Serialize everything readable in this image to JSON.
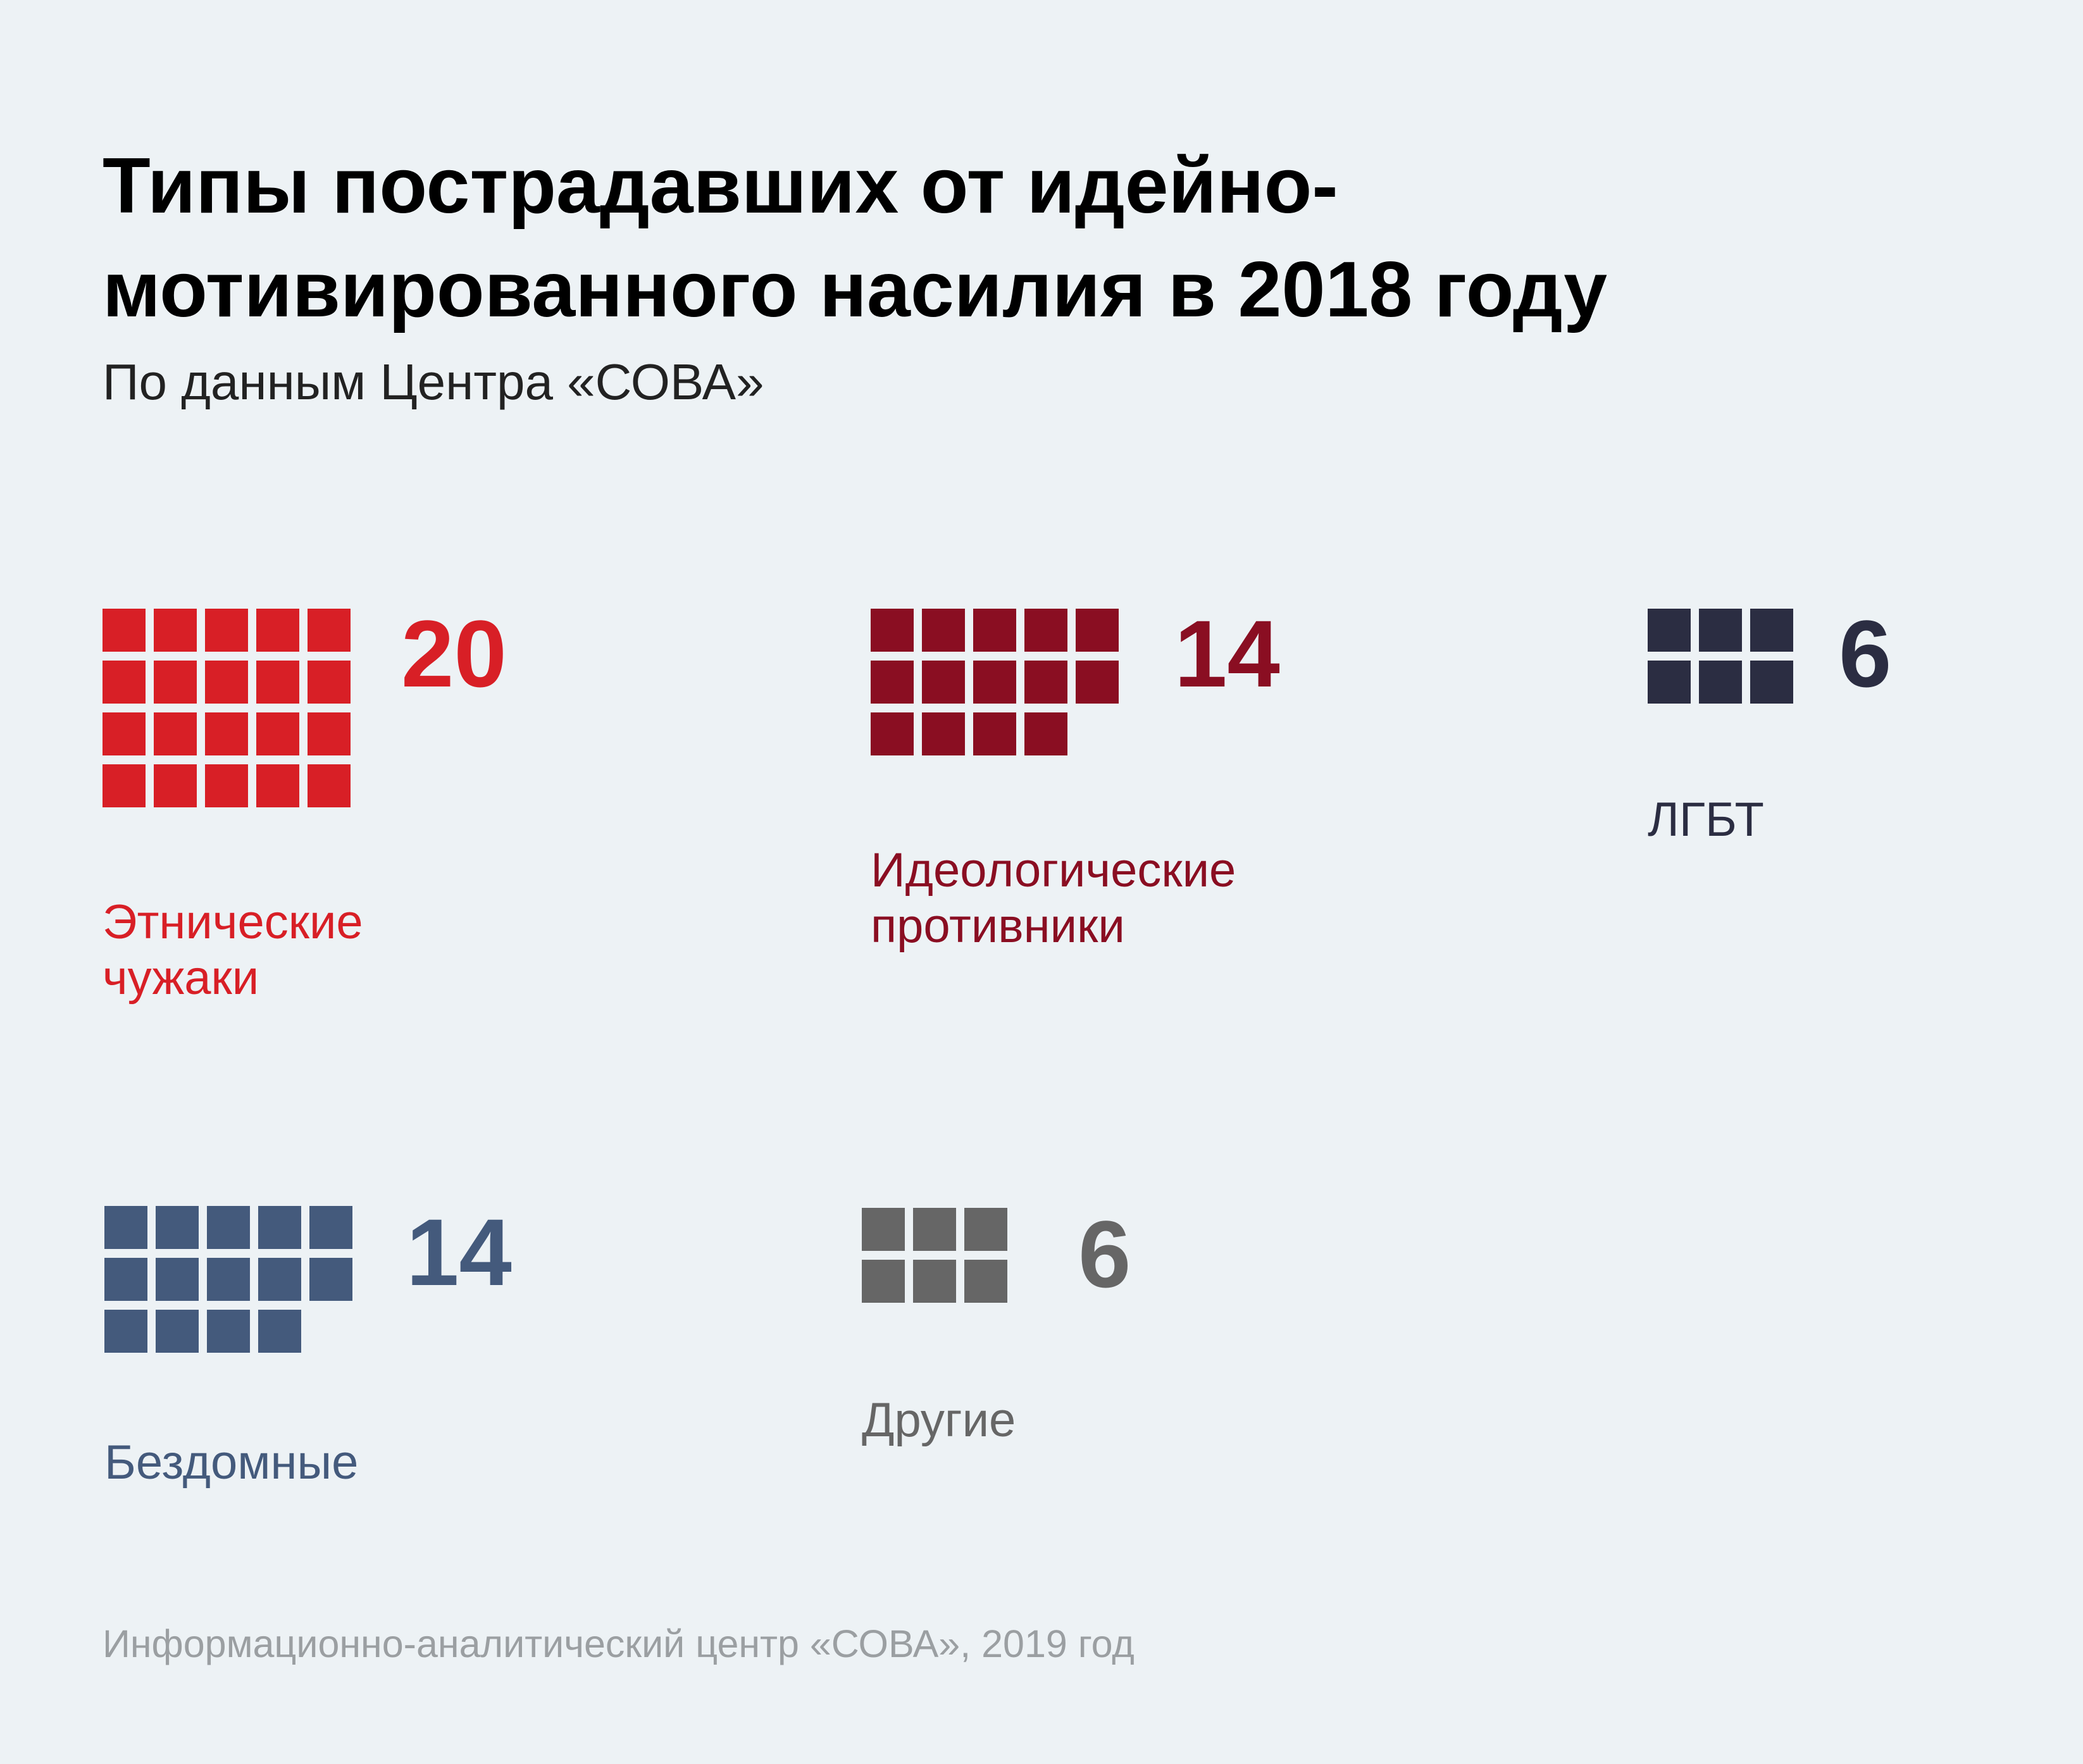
{
  "header": {
    "title_line1": "Типы пострадавших от идейно-",
    "title_line2": "мотивированного насилия в 2018 году",
    "subtitle": "По данным Центра «СОВА»"
  },
  "footer": {
    "source": "Информационно-аналитический центр «СОВА», 2019 год"
  },
  "chart_data": {
    "type": "pictogram",
    "unit_per_square": 1,
    "categories": [
      {
        "id": "ethnic",
        "label_lines": [
          "Этнические",
          "чужаки"
        ],
        "value": 20,
        "color": "#d81f26"
      },
      {
        "id": "ideological",
        "label_lines": [
          "Идеологические",
          "противники"
        ],
        "value": 14,
        "color": "#8a0e22"
      },
      {
        "id": "lgbt",
        "label_lines": [
          "ЛГБТ"
        ],
        "value": 6,
        "color": "#2b2d42"
      },
      {
        "id": "homeless",
        "label_lines": [
          "Бездомные"
        ],
        "value": 14,
        "color": "#445a7c"
      },
      {
        "id": "other",
        "label_lines": [
          "Другие"
        ],
        "value": 6,
        "color": "#666666"
      }
    ]
  }
}
